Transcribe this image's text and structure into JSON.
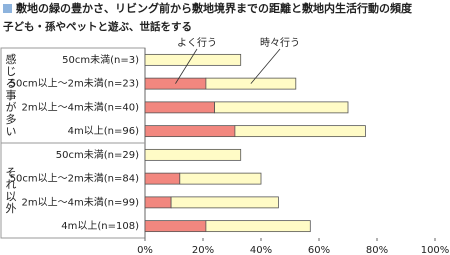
{
  "chart_data": {
    "type": "stacked-barh",
    "title": "敷地の緑の豊かさ、リビング前から敷地境界までの距離と敷地内生活行動の頻度",
    "subtitle": "子ども・孫やペットと遊ぶ、世話をする",
    "groups": [
      {
        "name": "感じる事が多い",
        "categories": [
          "50cm未満(n=3)",
          "50cm以上〜2m未満(n=23)",
          "2m以上〜4m未満(n=40)",
          "4m以上(n=96)"
        ]
      },
      {
        "name": "それ以外",
        "categories": [
          "50cm未満(n=29)",
          "50cm以上〜2m未満(n=84)",
          "2m以上〜4m未満(n=99)",
          "4m以上(n=108)"
        ]
      }
    ],
    "series": [
      {
        "name": "よく行う",
        "color": "#f2877f",
        "values": [
          0,
          21,
          24,
          31,
          0,
          12,
          9,
          21
        ]
      },
      {
        "name": "時々行う",
        "color": "#fffbc6",
        "values": [
          33,
          31,
          46,
          45,
          33,
          28,
          37,
          36
        ]
      }
    ],
    "xlim": [
      0,
      100
    ],
    "xticks": [
      {
        "value": 0,
        "label": "0%"
      },
      {
        "value": 20,
        "label": "20%"
      },
      {
        "value": 40,
        "label": "40%"
      },
      {
        "value": 60,
        "label": "60%"
      },
      {
        "value": 80,
        "label": "80%"
      },
      {
        "value": 100,
        "label": "100%"
      }
    ]
  }
}
